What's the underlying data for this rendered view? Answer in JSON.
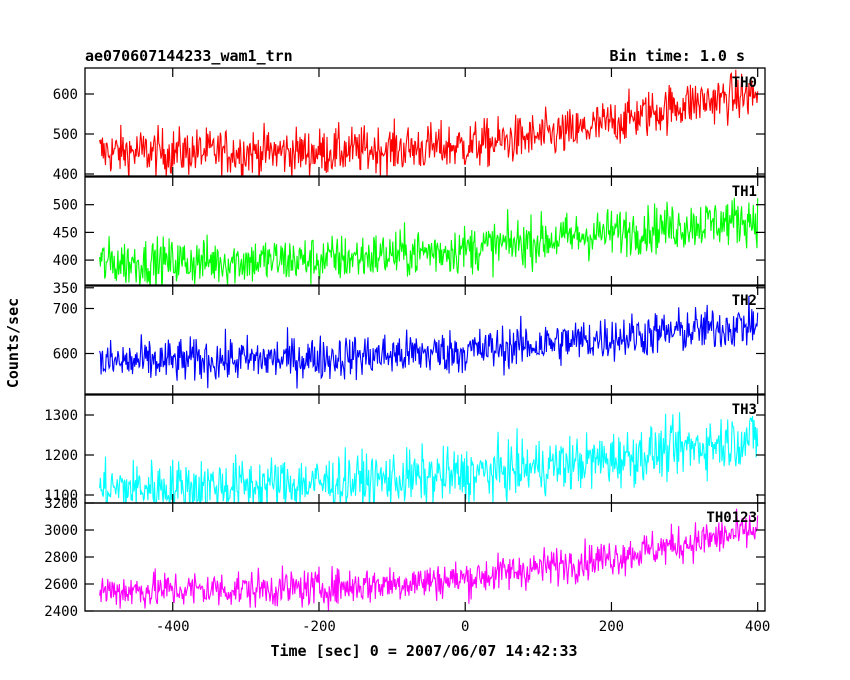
{
  "header": {
    "left_title": "ae070607144233_wam1_trn",
    "right_title": "Bin time: 1.0 s"
  },
  "ylabel": "Counts/sec",
  "xlabel": "Time [sec] 0 = 2007/06/07 14:42:33",
  "chart_data": {
    "type": "line",
    "xlim": [
      -520,
      410
    ],
    "x_ticks": [
      -400,
      -200,
      0,
      200,
      400
    ],
    "x_range": [
      -500,
      400
    ],
    "bin_time_s": 1.0,
    "grid": false,
    "panels": [
      {
        "name": "TH0",
        "color": "#ff0000",
        "ylim": [
          395,
          665
        ],
        "y_ticks": [
          400,
          500,
          600
        ],
        "trend": [
          [
            -500,
            455
          ],
          [
            -200,
            455
          ],
          [
            0,
            470
          ],
          [
            150,
            505
          ],
          [
            300,
            575
          ],
          [
            400,
            600
          ]
        ],
        "noise": 30
      },
      {
        "name": "TH1",
        "color": "#00ff00",
        "ylim": [
          355,
          550
        ],
        "y_ticks": [
          350,
          400,
          450,
          500
        ],
        "trend": [
          [
            -500,
            395
          ],
          [
            -200,
            400
          ],
          [
            0,
            420
          ],
          [
            200,
            450
          ],
          [
            400,
            475
          ]
        ],
        "noise": 22
      },
      {
        "name": "TH2",
        "color": "#0000ff",
        "ylim": [
          510,
          750
        ],
        "y_ticks": [
          600,
          700
        ],
        "trend": [
          [
            -500,
            580
          ],
          [
            -200,
            590
          ],
          [
            0,
            605
          ],
          [
            200,
            635
          ],
          [
            400,
            665
          ]
        ],
        "noise": 25
      },
      {
        "name": "TH3",
        "color": "#00ffff",
        "ylim": [
          1080,
          1350
        ],
        "y_ticks": [
          1100,
          1200,
          1300
        ],
        "trend": [
          [
            -500,
            1115
          ],
          [
            -200,
            1130
          ],
          [
            0,
            1150
          ],
          [
            200,
            1190
          ],
          [
            400,
            1245
          ]
        ],
        "noise": 35
      },
      {
        "name": "TH0123",
        "color": "#ff00ff",
        "ylim": [
          2400,
          3200
        ],
        "y_ticks": [
          2400,
          2600,
          2800,
          3000,
          3200
        ],
        "trend": [
          [
            -500,
            2550
          ],
          [
            -200,
            2570
          ],
          [
            0,
            2640
          ],
          [
            200,
            2800
          ],
          [
            400,
            3000
          ]
        ],
        "noise": 70
      }
    ]
  }
}
